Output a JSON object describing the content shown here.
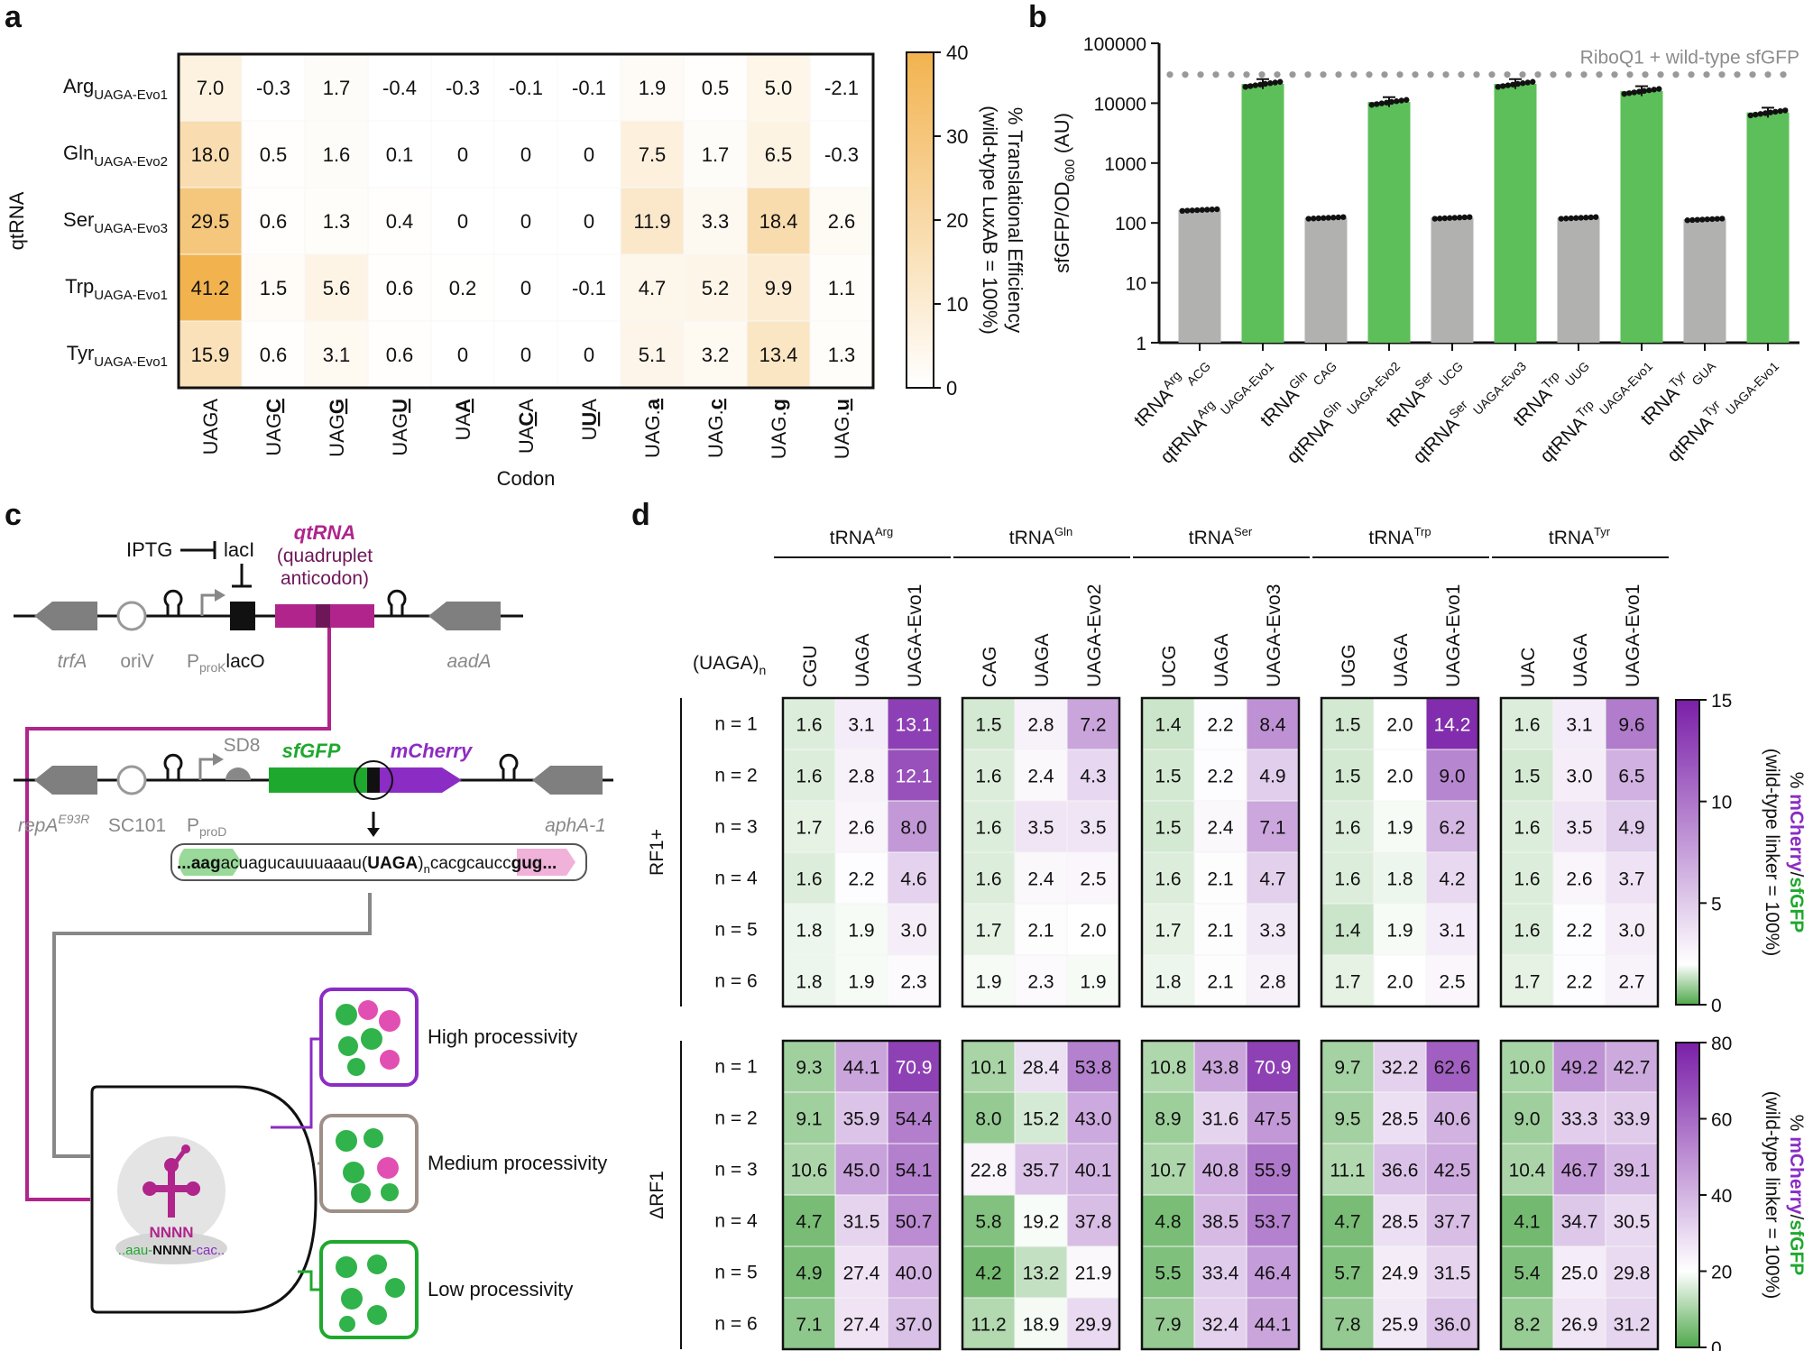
{
  "panel_labels": {
    "a": "a",
    "b": "b",
    "c": "c",
    "d": "d"
  },
  "chart_data": [
    {
      "id": "a",
      "type": "heatmap",
      "ylabel": "qtRNA",
      "xlabel": "Codon",
      "rows": [
        {
          "base": "Arg",
          "sub": "UAGA-Evo1"
        },
        {
          "base": "Gln",
          "sub": "UAGA-Evo2"
        },
        {
          "base": "Ser",
          "sub": "UAGA-Evo3"
        },
        {
          "base": "Trp",
          "sub": "UAGA-Evo1"
        },
        {
          "base": "Tyr",
          "sub": "UAGA-Evo1"
        }
      ],
      "columns": [
        {
          "pre": "UAG",
          "u": "",
          "post": ""
        },
        {
          "pre": "UAG",
          "u": "C",
          "post": ""
        },
        {
          "pre": "UAG",
          "u": "G",
          "post": ""
        },
        {
          "pre": "UAG",
          "u": "U",
          "post": ""
        },
        {
          "pre": "UA",
          "u": "A",
          "post": ""
        },
        {
          "pre": "UA",
          "u": "C",
          "post": "A"
        },
        {
          "pre": "U",
          "u": "U",
          "post": "A"
        },
        {
          "pre": "UAG.",
          "u": "a",
          "post": ""
        },
        {
          "pre": "UAG.",
          "u": "c",
          "post": ""
        },
        {
          "pre": "UAG.",
          "u": "g",
          "post": ""
        },
        {
          "pre": "UAG.",
          "u": "u",
          "post": ""
        }
      ],
      "column_first": "UAGA",
      "values": [
        [
          7.0,
          -0.3,
          1.7,
          -0.4,
          -0.3,
          -0.1,
          -0.1,
          1.9,
          0.5,
          5.0,
          -2.1
        ],
        [
          18.0,
          0.5,
          1.6,
          0.1,
          0,
          0,
          0,
          7.5,
          1.7,
          6.5,
          -0.3
        ],
        [
          29.5,
          0.6,
          1.3,
          0.4,
          0,
          0,
          0,
          11.9,
          3.3,
          18.4,
          2.6
        ],
        [
          41.2,
          1.5,
          5.6,
          0.6,
          0.2,
          0,
          -0.1,
          4.7,
          5.2,
          9.9,
          1.1
        ],
        [
          15.9,
          0.6,
          3.1,
          0.6,
          0,
          0,
          0,
          5.1,
          3.2,
          13.4,
          1.3
        ]
      ],
      "colorbar": {
        "min": 0,
        "max": 40,
        "ticks": [
          0,
          10,
          20,
          30,
          40
        ],
        "label1": "% Translational Efficiency",
        "label2": "(wild-type LuxAB = 100%)",
        "color_low": "#ffffff",
        "color_high": "#f2b34f"
      }
    },
    {
      "id": "b",
      "type": "bar",
      "ylabel_main": "sfGFP/OD",
      "ylabel_sub": "600",
      "ylabel_unit": " (AU)",
      "yscale": "log",
      "ylim": [
        1,
        100000
      ],
      "yticks": [
        "1",
        "10",
        "100",
        "1000",
        "10000",
        "100000"
      ],
      "reference": {
        "value": 30000,
        "label": "RiboQ1 + wild-type sfGFP"
      },
      "categories": [
        {
          "pre": "tRNA",
          "sup": "Arg",
          "sub": "ACG"
        },
        {
          "pre": "qtRNA",
          "sup": "Arg",
          "sub": "UAGA-Evo1"
        },
        {
          "pre": "tRNA",
          "sup": "Gln",
          "sub": "CAG"
        },
        {
          "pre": "qtRNA",
          "sup": "Gln",
          "sub": "UAGA-Evo2"
        },
        {
          "pre": "tRNA",
          "sup": "Ser",
          "sub": "UCG"
        },
        {
          "pre": "qtRNA",
          "sup": "Ser",
          "sub": "UAGA-Evo3"
        },
        {
          "pre": "tRNA",
          "sup": "Trp",
          "sub": "UUG"
        },
        {
          "pre": "qtRNA",
          "sup": "Trp",
          "sub": "UAGA-Evo1"
        },
        {
          "pre": "tRNA",
          "sup": "Tyr",
          "sub": "GUA"
        },
        {
          "pre": "qtRNA",
          "sup": "Tyr",
          "sub": "UAGA-Evo1"
        }
      ],
      "values": [
        165,
        21000,
        122,
        10500,
        122,
        21000,
        122,
        16000,
        115,
        7000
      ],
      "colors": [
        "#b1b1af",
        "#5cbf59",
        "#b1b1af",
        "#5cbf59",
        "#b1b1af",
        "#5cbf59",
        "#b1b1af",
        "#5cbf59",
        "#b1b1af",
        "#5cbf59"
      ]
    },
    {
      "id": "d",
      "type": "heatmap",
      "row_header": "(UAGA)",
      "row_header_sub": "n",
      "groups": [
        {
          "sup": "Arg",
          "cols": [
            "CGU",
            "UAGA",
            "UAGA-Evo1"
          ]
        },
        {
          "sup": "Gln",
          "cols": [
            "CAG",
            "UAGA",
            "UAGA-Evo2"
          ]
        },
        {
          "sup": "Ser",
          "cols": [
            "UCG",
            "UAGA",
            "UAGA-Evo3"
          ]
        },
        {
          "sup": "Trp",
          "cols": [
            "UGG",
            "UAGA",
            "UAGA-Evo1"
          ]
        },
        {
          "sup": "Tyr",
          "cols": [
            "UAC",
            "UAGA",
            "UAGA-Evo1"
          ]
        }
      ],
      "group_prefix": "tRNA",
      "row_labels": [
        "n = 1",
        "n = 2",
        "n = 3",
        "n = 4",
        "n = 5",
        "n = 6"
      ],
      "blocks": [
        {
          "label": "RF1+",
          "cmap": {
            "min": 0,
            "max": 15,
            "mid": 2,
            "ticks": [
              0,
              5,
              10,
              15
            ]
          },
          "values": [
            [
              [
                1.6,
                3.1,
                13.1
              ],
              [
                1.5,
                2.8,
                7.2
              ],
              [
                1.4,
                2.2,
                8.4
              ],
              [
                1.5,
                2.0,
                14.2
              ],
              [
                1.6,
                3.1,
                9.6
              ]
            ],
            [
              [
                1.6,
                2.8,
                12.1
              ],
              [
                1.6,
                2.4,
                4.3
              ],
              [
                1.5,
                2.2,
                4.9
              ],
              [
                1.5,
                2.0,
                9.0
              ],
              [
                1.5,
                3.0,
                6.5
              ]
            ],
            [
              [
                1.7,
                2.6,
                8.0
              ],
              [
                1.6,
                3.5,
                3.5
              ],
              [
                1.5,
                2.4,
                7.1
              ],
              [
                1.6,
                1.9,
                6.2
              ],
              [
                1.6,
                3.5,
                4.9
              ]
            ],
            [
              [
                1.6,
                2.2,
                4.6
              ],
              [
                1.6,
                2.4,
                2.5
              ],
              [
                1.6,
                2.1,
                4.7
              ],
              [
                1.6,
                1.8,
                4.2
              ],
              [
                1.6,
                2.6,
                3.7
              ]
            ],
            [
              [
                1.8,
                1.9,
                3.0
              ],
              [
                1.7,
                2.1,
                2.0
              ],
              [
                1.7,
                2.1,
                3.3
              ],
              [
                1.4,
                1.9,
                3.1
              ],
              [
                1.6,
                2.2,
                3.0
              ]
            ],
            [
              [
                1.8,
                1.9,
                2.3
              ],
              [
                1.9,
                2.3,
                1.9
              ],
              [
                1.8,
                2.1,
                2.8
              ],
              [
                1.7,
                2.0,
                2.5
              ],
              [
                1.7,
                2.2,
                2.7
              ]
            ]
          ]
        },
        {
          "label": "ΔRF1",
          "cmap": {
            "min": 0,
            "max": 80,
            "mid": 20,
            "ticks": [
              0,
              20,
              40,
              60,
              80
            ]
          },
          "values": [
            [
              [
                9.3,
                44.1,
                70.9
              ],
              [
                10.1,
                28.4,
                53.8
              ],
              [
                10.8,
                43.8,
                70.9
              ],
              [
                9.7,
                32.2,
                62.6
              ],
              [
                10.0,
                49.2,
                42.7
              ]
            ],
            [
              [
                9.1,
                35.9,
                54.4
              ],
              [
                8.0,
                15.2,
                43.0
              ],
              [
                8.9,
                31.6,
                47.5
              ],
              [
                9.5,
                28.5,
                40.6
              ],
              [
                9.0,
                33.3,
                33.9
              ]
            ],
            [
              [
                10.6,
                45.0,
                54.1
              ],
              [
                22.8,
                35.7,
                40.1
              ],
              [
                10.7,
                40.8,
                55.9
              ],
              [
                11.1,
                36.6,
                42.5
              ],
              [
                10.4,
                46.7,
                39.1
              ]
            ],
            [
              [
                4.7,
                31.5,
                50.7
              ],
              [
                5.8,
                19.2,
                37.8
              ],
              [
                4.8,
                38.5,
                53.7
              ],
              [
                4.7,
                28.5,
                37.7
              ],
              [
                4.1,
                34.7,
                30.5
              ]
            ],
            [
              [
                4.9,
                27.4,
                40.0
              ],
              [
                4.2,
                13.2,
                21.9
              ],
              [
                5.5,
                33.4,
                46.4
              ],
              [
                5.7,
                24.9,
                31.5
              ],
              [
                5.4,
                25.0,
                29.8
              ]
            ],
            [
              [
                7.1,
                27.4,
                37.0
              ],
              [
                11.2,
                18.9,
                29.9
              ],
              [
                7.9,
                32.4,
                44.1
              ],
              [
                7.8,
                25.9,
                36.0
              ],
              [
                8.2,
                26.9,
                31.2
              ]
            ]
          ]
        }
      ],
      "colorbar_label": {
        "pct": "%",
        "a": "mCherry",
        "slash": "/",
        "b": "sfGFP",
        "line2": "(wild-type linker = 100%)"
      },
      "colors": {
        "low": "#4fa84b",
        "mid": "#ffffff",
        "high": "#7a1fa8"
      }
    }
  ],
  "diagram_c": {
    "inducer": "IPTG",
    "repressor": "lacI",
    "qtrna_label": "qtRNA",
    "qtrna_paren1": "(quadruplet",
    "qtrna_paren2": "anticodon)",
    "plasmid1": {
      "trfA": "trfA",
      "oriV": "oriV",
      "promoter": "P",
      "promoter_sub": "proK",
      "lacO": "lacO",
      "aadA": "aadA"
    },
    "plasmid2": {
      "repA": "repA",
      "repA_sup": "E93R",
      "sc101": "SC101",
      "promoter": "P",
      "promoter_sub": "proD",
      "sd8": "SD8",
      "sfgfp": "sfGFP",
      "mcherry": "mCherry",
      "aphA": "aphA-1"
    },
    "linker": {
      "g1": "...",
      "g2": "aag",
      "mid": "acuagucauuuaaau(",
      "uaga": "UAGA",
      "close": ")",
      "n": "n",
      "tail": "cacgcaucc",
      "m1": "gug",
      "m2": "..."
    },
    "ribosome": {
      "anticodon": "NNNN",
      "mrna_l": "..aau-",
      "mrna_c": "NNNN",
      "mrna_r": "-cac.."
    },
    "outcomes": [
      "High processivity",
      "Medium processivity",
      "Low processivity"
    ]
  }
}
